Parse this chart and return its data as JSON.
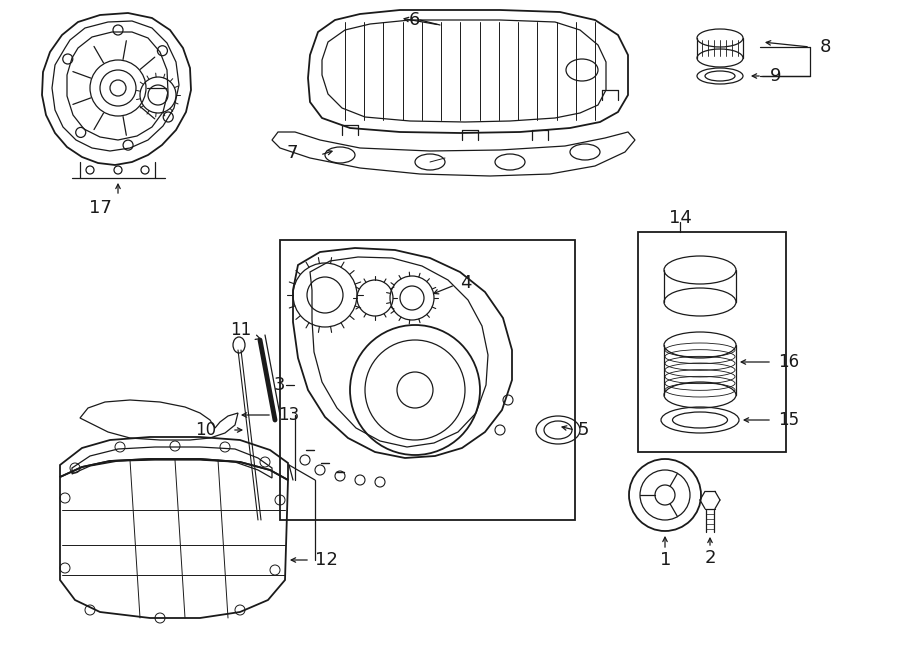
{
  "bg_color": "#ffffff",
  "line_color": "#1a1a1a",
  "fig_width": 9.0,
  "fig_height": 6.61,
  "dpi": 100,
  "lw": 0.9,
  "lw2": 1.3
}
